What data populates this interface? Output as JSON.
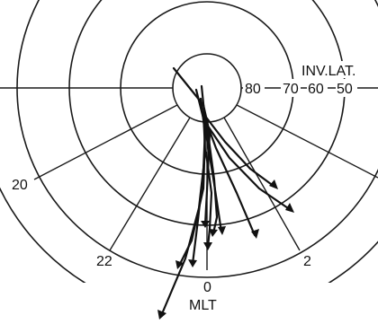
{
  "labels": {
    "lat_80": "80",
    "lat_70": "70",
    "lat_60": "60",
    "lat_50": "50",
    "coordinate_name": "INV.LAT.",
    "mlt_20": "20",
    "mlt_22": "22",
    "mlt_0": "0",
    "mlt_2": "2",
    "mlt_axis": "MLT"
  },
  "colors": {
    "ink": "#111111",
    "background": "#ffffff"
  },
  "grid": {
    "latitude_circles": [
      80,
      70,
      60,
      50
    ],
    "mlt_meridians": [
      18,
      20,
      22,
      0,
      2,
      4,
      6
    ],
    "hemisphere_shown": "night side"
  },
  "trajectories_count": 10
}
